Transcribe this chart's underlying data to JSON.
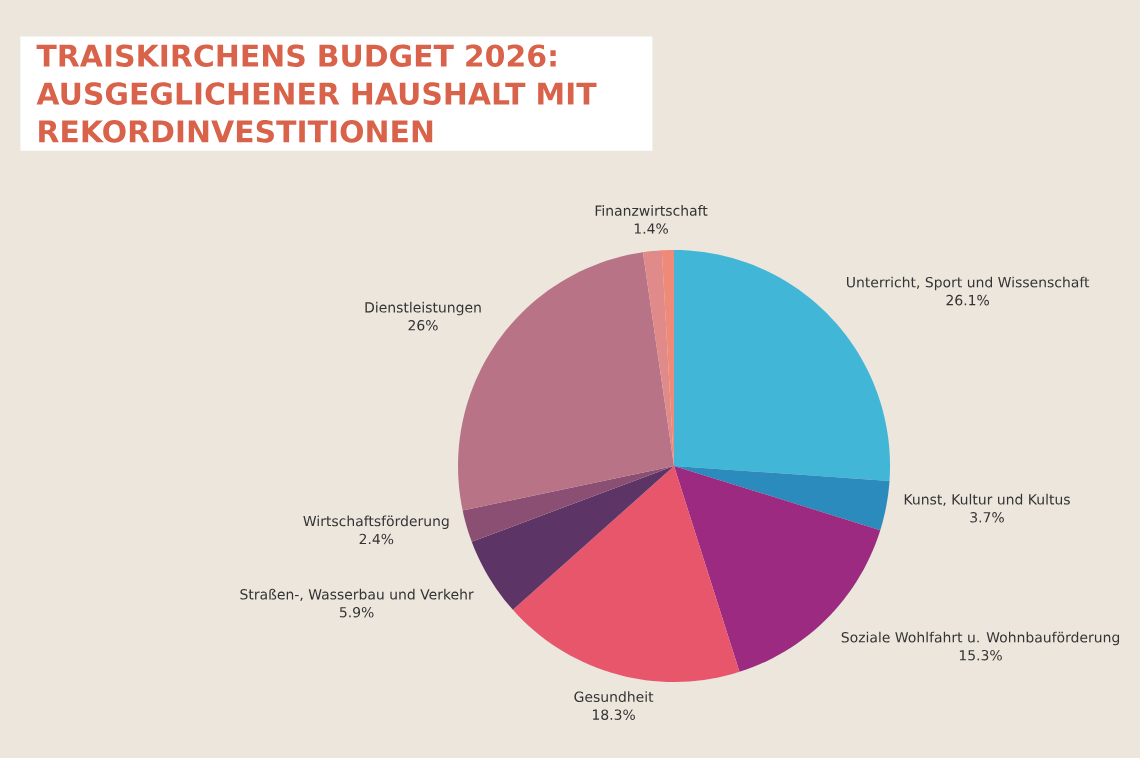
{
  "chart_data": {
    "type": "pie",
    "title": "TRAISKIRCHENS BUDGET 2026: AUSGEGLICHENER HAUSHALT MIT REKORDINVESTITIONEN",
    "categories": [
      "Unterricht, Sport und Wissenschaft",
      "Kunst, Kultur und Kultus",
      "Soziale Wohlfahrt u. Wohnbauförderung",
      "Gesundheit",
      "Straßen-, Wasserbau und Verkehr",
      "Wirtschaftsförderung",
      "Dienstleistungen",
      "Finanzwirtschaft",
      null
    ],
    "values": [
      26.1,
      3.7,
      15.3,
      18.3,
      5.9,
      2.4,
      26,
      1.4,
      0.9
    ],
    "colors": [
      "#42b6d6",
      "#2b8bbd",
      "#9b2a80",
      "#e8566c",
      "#5c3566",
      "#8a4f72",
      "#b87386",
      "#e08a8a",
      "#ef8a78"
    ],
    "value_labels": [
      "26.1%",
      "3.7%",
      "15.3%",
      "18.3%",
      "5.9%",
      "2.4%",
      "26%",
      "1.4%",
      null
    ]
  }
}
